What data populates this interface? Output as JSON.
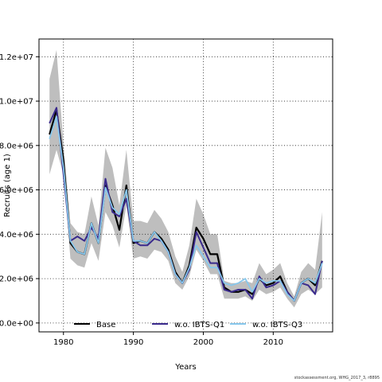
{
  "chart_data": {
    "type": "line",
    "xlabel": "Years",
    "ylabel": "Recruits (age 1)",
    "xlim": [
      1976.5,
      2018.5
    ],
    "ylim": [
      -400000,
      12800000
    ],
    "x_ticks": [
      1980,
      1990,
      2000,
      2010
    ],
    "y_ticks": [
      0,
      2000000,
      4000000,
      6000000,
      8000000,
      10000000,
      12000000
    ],
    "y_tick_labels": [
      "0.0e+00",
      "2.0e+06",
      "4.0e+06",
      "6.0e+06",
      "8.0e+06",
      "1.0e+07",
      "1.2e+07"
    ],
    "grid": true,
    "legend_position": "bottom",
    "legend": [
      "Base",
      "w.o. IBTS-Q1",
      "w.o. IBTS-Q3"
    ],
    "band_color": "#bebebe",
    "years": [
      1978,
      1979,
      1980,
      1981,
      1982,
      1983,
      1984,
      1985,
      1986,
      1987,
      1988,
      1989,
      1990,
      1991,
      1992,
      1993,
      1994,
      1995,
      1996,
      1997,
      1998,
      1999,
      2000,
      2001,
      2002,
      2003,
      2004,
      2005,
      2006,
      2007,
      2008,
      2009,
      2010,
      2011,
      2012,
      2013,
      2014,
      2015,
      2016,
      2017
    ],
    "band": {
      "upper": [
        11000000,
        12300000,
        8000000,
        4500000,
        4100000,
        4000000,
        5700000,
        4400000,
        7900000,
        7000000,
        5300000,
        7800000,
        4600000,
        4600000,
        4500000,
        5100000,
        4700000,
        4100000,
        3000000,
        2300000,
        3500000,
        5600000,
        4900000,
        4000000,
        4000000,
        1900000,
        1800000,
        1800000,
        1900000,
        1800000,
        2700000,
        2200000,
        2400000,
        2700000,
        1800000,
        1200000,
        2300000,
        2700000,
        2400000,
        5000000
      ],
      "lower": [
        6700000,
        7800000,
        6700000,
        2900000,
        2600000,
        2500000,
        3600000,
        2800000,
        5000000,
        4400000,
        3400000,
        5300000,
        2900000,
        3000000,
        2900000,
        3300000,
        3200000,
        2800000,
        1800000,
        1500000,
        2100000,
        3300000,
        2800000,
        2200000,
        2200000,
        1100000,
        1100000,
        1100000,
        1200000,
        1000000,
        1500000,
        1300000,
        1400000,
        1600000,
        1100000,
        700000,
        1300000,
        1500000,
        1300000,
        1600000
      ]
    },
    "series": [
      {
        "name": "Base",
        "color": "#000000",
        "values": [
          8500000,
          9600000,
          7300000,
          3600000,
          3200000,
          3100000,
          4500000,
          3600000,
          6200000,
          5300000,
          4200000,
          6200000,
          3600000,
          3700000,
          3600000,
          4100000,
          3800000,
          3300000,
          2300000,
          1800000,
          2600000,
          4300000,
          3800000,
          3100000,
          3100000,
          1600000,
          1400000,
          1400000,
          1500000,
          1300000,
          2000000,
          1700000,
          1800000,
          2100000,
          1400000,
          1000000,
          1800000,
          2000000,
          1700000,
          2800000
        ]
      },
      {
        "name": "w.o. IBTS-Q1",
        "color": "#3a2a8c",
        "values": [
          9000000,
          9700000,
          6700000,
          3700000,
          3900000,
          3700000,
          4300000,
          3800000,
          6500000,
          5000000,
          4800000,
          5600000,
          3700000,
          3500000,
          3500000,
          3800000,
          3700000,
          3200000,
          2200000,
          1800000,
          2400000,
          4100000,
          3400000,
          2700000,
          2700000,
          1500000,
          1400000,
          1500000,
          1500000,
          1100000,
          2100000,
          1600000,
          1700000,
          1900000,
          1400000,
          1000000,
          1800000,
          1700000,
          1300000,
          2800000
        ]
      },
      {
        "name": "w.o. IBTS-Q3",
        "color": "#87c7ec",
        "values": [
          8300000,
          9300000,
          7000000,
          3700000,
          3200000,
          3100000,
          4500000,
          3600000,
          6100000,
          5200000,
          4900000,
          6000000,
          3700000,
          3700000,
          3600000,
          4100000,
          3700000,
          3200000,
          2200000,
          1800000,
          2500000,
          3500000,
          3000000,
          2500000,
          2500000,
          1800000,
          1700000,
          1800000,
          2000000,
          1400000,
          2000000,
          1800000,
          1900000,
          1900000,
          1300000,
          1000000,
          1800000,
          2000000,
          1800000,
          2700000
        ]
      }
    ]
  },
  "footer": {
    "source": "stockassessment.org, WHG_2017_3, r8895"
  }
}
